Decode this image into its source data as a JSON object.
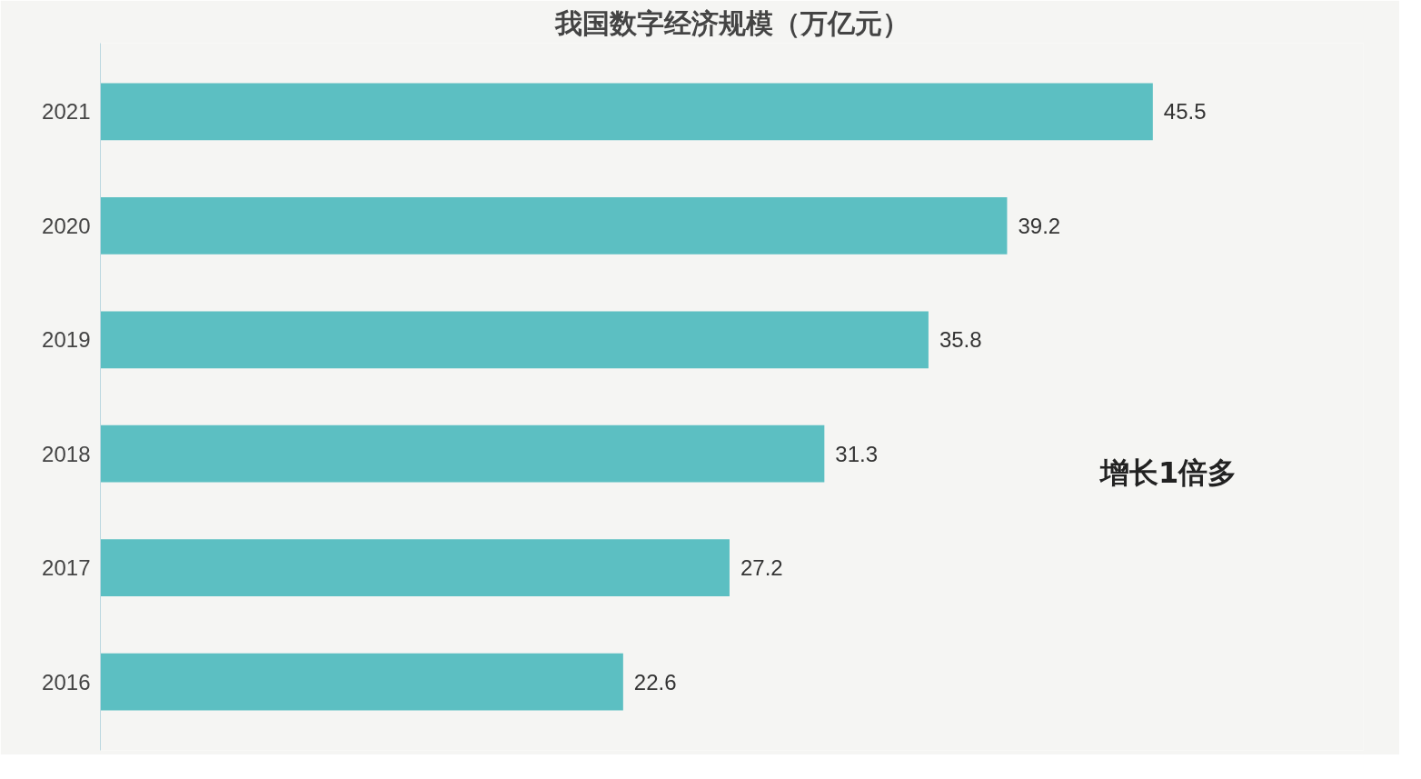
{
  "chart_data": {
    "type": "bar",
    "orientation": "horizontal",
    "title": "我国数字经济规模（万亿元）",
    "categories": [
      "2021",
      "2020",
      "2019",
      "2018",
      "2017",
      "2016"
    ],
    "values": [
      45.5,
      39.2,
      35.8,
      31.3,
      27.2,
      22.6
    ],
    "color": "#5cbfc2",
    "data_labels": true,
    "grid": false,
    "tick_labels": "y",
    "annotations": [
      "增长1倍多"
    ]
  }
}
